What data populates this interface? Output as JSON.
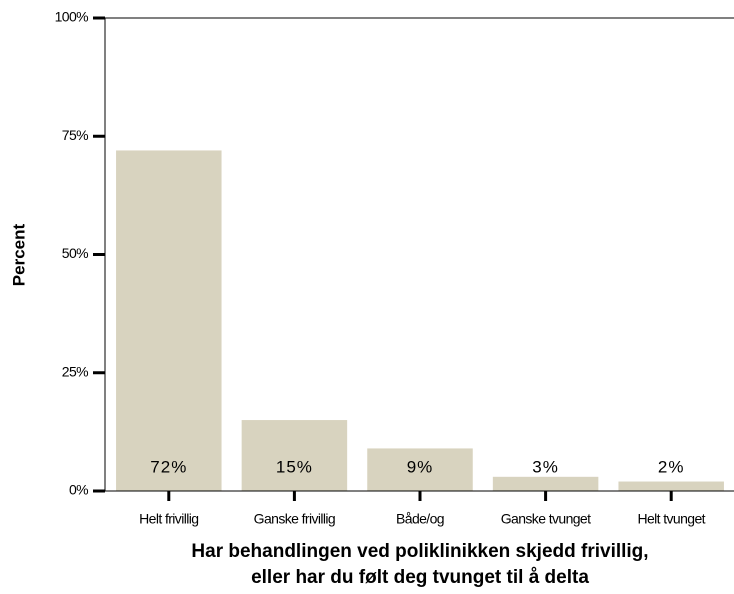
{
  "chart_data": {
    "type": "bar",
    "categories": [
      "Helt frivillig",
      "Ganske frivillig",
      "Både/og",
      "Ganske tvunget",
      "Helt tvunget"
    ],
    "values": [
      72,
      15,
      9,
      3,
      2
    ],
    "value_labels": [
      "72%",
      "15%",
      "9%",
      "3%",
      "2%"
    ],
    "color": "#d8d3bf",
    "ylim": [
      0,
      100
    ],
    "yticks": [
      {
        "value": 0,
        "label": "0%"
      },
      {
        "value": 25,
        "label": "25%"
      },
      {
        "value": 50,
        "label": "50%"
      },
      {
        "value": 75,
        "label": "75%"
      },
      {
        "value": 100,
        "label": "100%"
      }
    ],
    "ylabel": "Percent",
    "xlabel": [
      "Har behandlingen ved poliklinikken skjedd frivillig,",
      "eller har du følt deg tvunget til å delta"
    ],
    "grid": false
  }
}
